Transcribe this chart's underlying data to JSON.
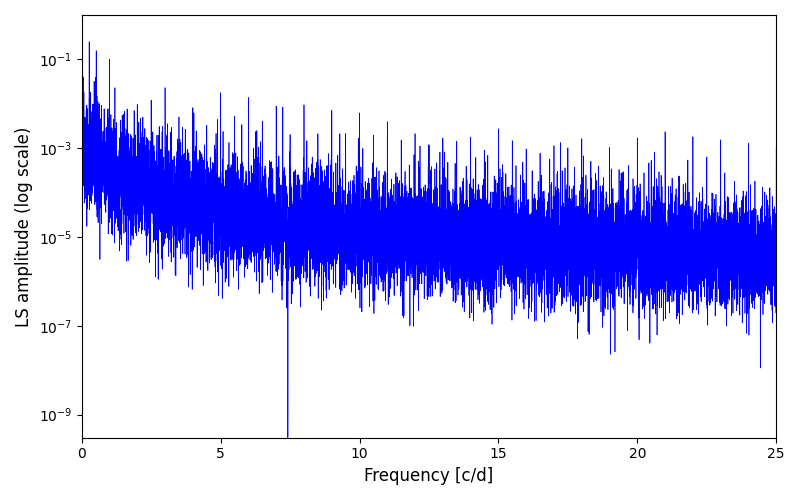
{
  "xlabel": "Frequency [c/d]",
  "ylabel": "LS amplitude (log scale)",
  "xlim": [
    0,
    25
  ],
  "ylim": [
    3e-10,
    1.0
  ],
  "color": "#0000ff",
  "linewidth": 0.5,
  "figsize": [
    8.0,
    5.0
  ],
  "dpi": 100,
  "ytick_values": [
    1e-09,
    1e-07,
    1e-05,
    0.001,
    0.1
  ],
  "xtick_values": [
    0,
    5,
    10,
    15,
    20,
    25
  ],
  "background_color": "#ffffff"
}
